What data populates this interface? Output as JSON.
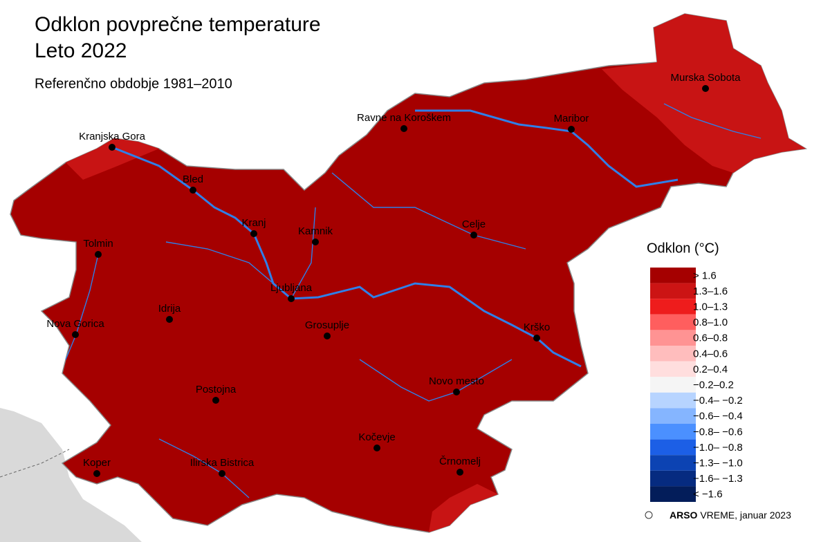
{
  "title": [
    "Odklon povprečne temperature",
    "Leto 2022"
  ],
  "subtitle": "Referenčno obdobje 1981–2010",
  "cities": [
    {
      "label": "Kranjska Gora"
    },
    {
      "label": "Bled"
    },
    {
      "label": "Kranj"
    },
    {
      "label": "Kamnik"
    },
    {
      "label": "Tolmin"
    },
    {
      "label": "Ljubljana"
    },
    {
      "label": "Idrija"
    },
    {
      "label": "Nova Gorica"
    },
    {
      "label": "Grosuplje"
    },
    {
      "label": "Celje"
    },
    {
      "label": "Ravne na Koroškem"
    },
    {
      "label": "Maribor"
    },
    {
      "label": "Murska Sobota"
    },
    {
      "label": "Krško"
    },
    {
      "label": "Novo mesto"
    },
    {
      "label": "Postojna"
    },
    {
      "label": "Kočevje"
    },
    {
      "label": "Koper"
    },
    {
      "label": "Ilirska Bistrica"
    },
    {
      "label": "Črnomelj"
    }
  ],
  "legend": {
    "title": "Odklon (°C)",
    "items": [
      {
        "label": "> 1.6",
        "color": "#a50000"
      },
      {
        "label": "1.3–1.6",
        "color": "#cc1414"
      },
      {
        "label": "1.0–1.3",
        "color": "#ee1c1c"
      },
      {
        "label": "0.8–1.0",
        "color": "#ff5e5e"
      },
      {
        "label": "0.6–0.8",
        "color": "#ff9393"
      },
      {
        "label": "0.4–0.6",
        "color": "#ffbdbd"
      },
      {
        "label": "0.2–0.4",
        "color": "#ffdede"
      },
      {
        "label": "−0.2–0.2",
        "color": "#f5f5f5"
      },
      {
        "label": "−0.4– −0.2",
        "color": "#b7d4ff"
      },
      {
        "label": "−0.6– −0.4",
        "color": "#85b5ff"
      },
      {
        "label": "−0.8– −0.6",
        "color": "#4b90ff"
      },
      {
        "label": "−1.0– −0.8",
        "color": "#1c5fe6"
      },
      {
        "label": "−1.3– −1.0",
        "color": "#0c43b3"
      },
      {
        "label": "−1.6– −1.3",
        "color": "#062b80"
      },
      {
        "label": "< −1.6",
        "color": "#031d5a"
      }
    ]
  },
  "credit": {
    "brand": "ARSO",
    "product": "VREME",
    "date": ", januar 2023"
  }
}
